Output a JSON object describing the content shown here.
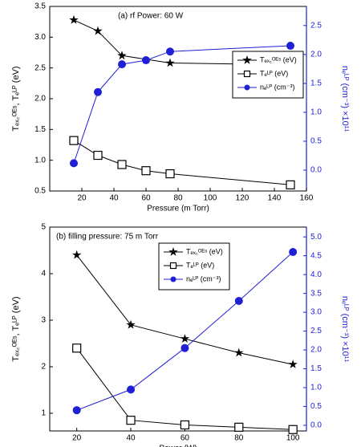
{
  "chart_data": [
    {
      "type": "line",
      "annotation": "(a) rf Power: 60 W",
      "x_label": "Pressure (m Torr)",
      "y_label": "Tₑₓ꜀ᴼᴱˢ, Tₑᴸᴾ (eV)",
      "y2_label": "nₑᴸᴾ (cm⁻³) ×10¹¹",
      "xlim": [
        0,
        160
      ],
      "xticks": [
        20,
        40,
        60,
        80,
        100,
        120,
        140,
        160
      ],
      "ylim": [
        0.5,
        3.5
      ],
      "yticks": [
        0.5,
        {
          "value": 1,
          "label": "1.0"
        },
        1.5,
        {
          "value": 2,
          "label": "2.0"
        },
        2.5,
        {
          "value": 3,
          "label": "3.0"
        },
        3.5
      ],
      "y2lim": [
        -0.36,
        2.83
      ],
      "y2ticks": [
        {
          "value": 0,
          "label": "0.0"
        },
        0.5,
        {
          "value": 1,
          "label": "1.0"
        },
        1.5,
        {
          "value": 2,
          "label": "2.0"
        },
        2.5
      ],
      "legend": "center right",
      "series": [
        {
          "name": "Tₑₓ꜀ᴼᴱˢ (eV)",
          "color": "#000000",
          "marker": "star",
          "x": [
            15,
            30,
            45,
            75,
            150
          ],
          "values": [
            3.28,
            3.1,
            2.7,
            2.58,
            2.55
          ]
        },
        {
          "name": "Tₑᴸᴾ (eV)",
          "color": "#000000",
          "marker": "square",
          "x": [
            15,
            30,
            45,
            60,
            75,
            150
          ],
          "values": [
            1.32,
            1.08,
            0.93,
            0.83,
            0.78,
            0.6
          ]
        },
        {
          "name": "nₑᴸᴾ (cm⁻³)",
          "color": "#1f1fd6",
          "marker": "circle",
          "axis": "y2",
          "x": [
            15,
            30,
            45,
            60,
            75,
            150
          ],
          "values": [
            0.12,
            1.35,
            1.83,
            1.9,
            2.05,
            2.15
          ]
        }
      ]
    },
    {
      "type": "line",
      "annotation": "(b) filling pressure: 75 m Torr",
      "x_label": "Power (W)",
      "y_label": "Tₑₓ꜀ᴼᴱˢ, Tₑᴸᴾ (eV)",
      "y2_label": "nₑᴸᴾ (cm⁻³) ×10¹¹",
      "xlim": [
        10,
        105
      ],
      "xticks": [
        20,
        40,
        60,
        80,
        100
      ],
      "ylim": [
        0.62,
        5
      ],
      "yticks": [
        1,
        2,
        3,
        4,
        5
      ],
      "y2lim": [
        -0.15,
        5.26
      ],
      "y2ticks": [
        {
          "value": 0,
          "label": "0.0"
        },
        0.5,
        {
          "value": 1,
          "label": "1.0"
        },
        1.5,
        {
          "value": 2,
          "label": "2.0"
        },
        2.5,
        {
          "value": 3,
          "label": "3.0"
        },
        3.5,
        {
          "value": 4,
          "label": "4.0"
        },
        4.5,
        {
          "value": 5,
          "label": "5.0"
        }
      ],
      "legend": "upper center",
      "series": [
        {
          "name": "Tₑₓ꜀ᴼᴱˢ (eV)",
          "color": "#000000",
          "marker": "star",
          "x": [
            20,
            40,
            60,
            80,
            100
          ],
          "values": [
            4.4,
            2.9,
            2.6,
            2.3,
            2.05
          ]
        },
        {
          "name": "Tₑᴸᴾ (eV)",
          "color": "#000000",
          "marker": "square",
          "x": [
            20,
            40,
            60,
            80,
            100
          ],
          "values": [
            2.4,
            0.85,
            0.75,
            0.7,
            0.65
          ]
        },
        {
          "name": "nₑᴸᴾ (cm⁻³)",
          "color": "#1f1fd6",
          "marker": "circle",
          "axis": "y2",
          "x": [
            20,
            40,
            60,
            80,
            100
          ],
          "values": [
            0.4,
            0.95,
            2.05,
            3.3,
            4.6
          ]
        }
      ]
    }
  ]
}
